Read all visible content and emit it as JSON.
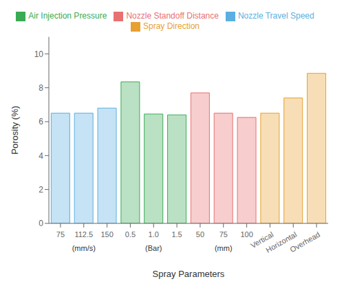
{
  "chart_data": {
    "type": "bar",
    "categories": [
      "75",
      "112.5",
      "150",
      "0.5",
      "1.0",
      "1.5",
      "50",
      "75",
      "100",
      "Vertical",
      "Horizontal",
      "Overhead"
    ],
    "series": [
      {
        "name": "Nozzle Travel Speed",
        "color": "#5aafe0",
        "values": [
          6.5,
          6.5,
          6.8,
          null,
          null,
          null,
          null,
          null,
          null,
          null,
          null,
          null
        ]
      },
      {
        "name": "Air Injection Pressure",
        "color": "#3aaa55",
        "values": [
          null,
          null,
          null,
          8.35,
          6.45,
          6.4,
          null,
          null,
          null,
          null,
          null,
          null
        ]
      },
      {
        "name": "Nozzle Standoff Distance",
        "color": "#e87070",
        "values": [
          null,
          null,
          null,
          null,
          null,
          null,
          7.7,
          6.5,
          6.25,
          null,
          null,
          null
        ]
      },
      {
        "name": "Spray Direction",
        "color": "#e8a030",
        "values": [
          null,
          null,
          null,
          null,
          null,
          null,
          null,
          null,
          null,
          6.5,
          7.4,
          8.85
        ]
      }
    ],
    "xlabel": "Spray Parameters",
    "ylabel": "Porosity (%)",
    "ylim": [
      0,
      11
    ],
    "yticks": [
      0,
      2,
      4,
      6,
      8,
      10
    ],
    "grid": false,
    "legend": "top",
    "annotations": [
      {
        "text": "(mm/s)",
        "series": "Nozzle Travel Speed"
      },
      {
        "text": "(Bar)",
        "series": "Air Injection Pressure"
      },
      {
        "text": "(mm)",
        "series": "Nozzle Standoff Distance"
      }
    ]
  }
}
